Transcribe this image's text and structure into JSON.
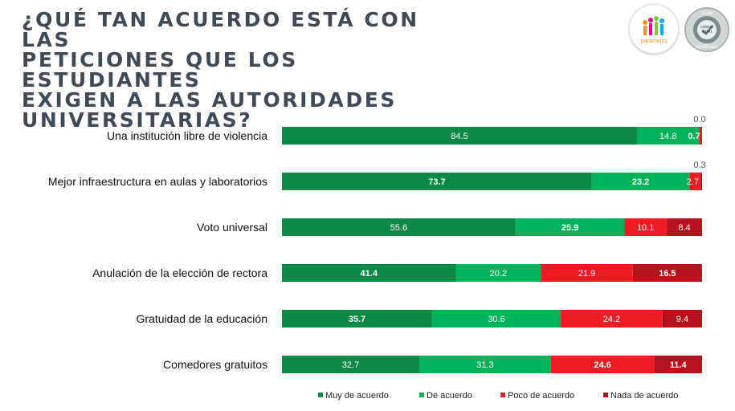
{
  "header": {
    "title": "¿QUÉ TAN ACUERDO ESTÁ CON LAS\nPETICIONES QUE LOS ESTUDIANTES\nEXIGEN A LAS AUTORIDADES\nUNIVERSITARIAS?",
    "logo_left_text": "parámetro",
    "logo_right_text_top": "socio",
    "logo_right_text_mid": "calidad",
    "logo_right_text_mid2": "AMAI",
    "logo_right_text_bottom": "certificado"
  },
  "chart_data": {
    "type": "bar",
    "orientation": "horizontal",
    "stacked": true,
    "percent_stacked": true,
    "categories": [
      "Una institución libre de violencia",
      "Mejor infraestructura en aulas y laboratorios",
      "Voto universal",
      "Anulación de la elección de rectora",
      "Gratuidad de la educación",
      "Comedores gratuitos"
    ],
    "series": [
      {
        "name": "Muy de acuerdo",
        "values": [
          84.5,
          73.7,
          55.6,
          41.4,
          35.7,
          32.7
        ],
        "color": "#0b8a44",
        "bold": [
          false,
          true,
          false,
          true,
          true,
          false
        ]
      },
      {
        "name": "De acuerdo",
        "values": [
          14.8,
          23.2,
          25.9,
          20.2,
          30.6,
          31.3
        ],
        "color": "#00b259",
        "bold": [
          false,
          true,
          true,
          false,
          false,
          false
        ]
      },
      {
        "name": "Poco de acuerdo",
        "values": [
          0.7,
          2.7,
          10.1,
          21.9,
          24.2,
          24.6
        ],
        "color": "#ed1c24",
        "bold": [
          true,
          false,
          false,
          false,
          false,
          true
        ]
      },
      {
        "name": "Nada de acuerdo",
        "values": [
          0.0,
          0.3,
          8.4,
          16.5,
          9.4,
          11.4
        ],
        "color": "#b5121b",
        "bold": [
          false,
          false,
          false,
          true,
          false,
          true
        ]
      }
    ],
    "outside_labels": [
      {
        "category_index": 0,
        "series_index": 3,
        "text": "0.0"
      },
      {
        "category_index": 1,
        "series_index": 3,
        "text": "0.3"
      }
    ],
    "xlim": [
      0,
      100
    ],
    "legend": "bottom",
    "grid": false
  }
}
